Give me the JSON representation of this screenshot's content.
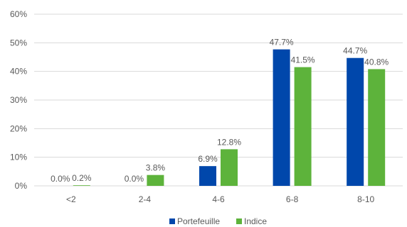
{
  "chart_data": {
    "type": "bar",
    "categories": [
      "<2",
      "2-4",
      "4-6",
      "6-8",
      "8-10"
    ],
    "series": [
      {
        "name": "Portefeuille",
        "color": "#0047AB",
        "values": [
          0.0,
          0.0,
          6.9,
          47.7,
          44.7
        ],
        "labels": [
          "0.0%",
          "0.0%",
          "6.9%",
          "47.7%",
          "44.7%"
        ]
      },
      {
        "name": "Indice",
        "color": "#5DB33B",
        "values": [
          0.2,
          3.8,
          12.8,
          41.5,
          40.8
        ],
        "labels": [
          "0.2%",
          "3.8%",
          "12.8%",
          "41.5%",
          "40.8%"
        ]
      }
    ],
    "ylim": [
      0,
      60
    ],
    "yticks": [
      "0%",
      "10%",
      "20%",
      "30%",
      "40%",
      "50%",
      "60%"
    ],
    "grid": true,
    "gridColor": "#d9d9d9",
    "legend_position": "bottom"
  }
}
